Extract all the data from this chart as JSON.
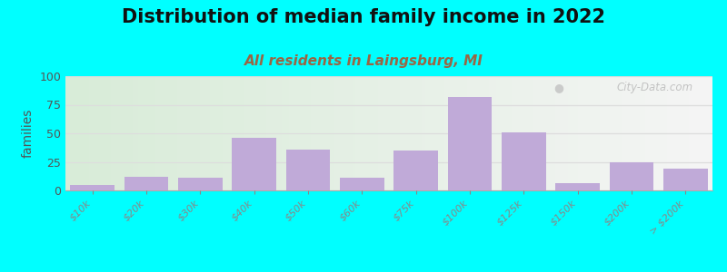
{
  "title": "Distribution of median family income in 2022",
  "subtitle": "All residents in Laingsburg, MI",
  "ylabel": "families",
  "categories": [
    "$10k",
    "$20k",
    "$30k",
    "$40k",
    "$50k",
    "$60k",
    "$75k",
    "$100k",
    "$125k",
    "$150k",
    "$200k",
    "> $200k"
  ],
  "values": [
    5,
    12,
    11,
    46,
    36,
    11,
    35,
    82,
    51,
    6,
    25,
    19
  ],
  "bar_color": "#c0aad8",
  "background_color": "#00ffff",
  "gradient_left": "#d8ecd8",
  "gradient_right": "#f5f5f5",
  "ylim": [
    0,
    100
  ],
  "yticks": [
    0,
    25,
    50,
    75,
    100
  ],
  "title_fontsize": 15,
  "subtitle_fontsize": 11,
  "ylabel_fontsize": 10,
  "watermark": "City-Data.com",
  "grid_color": "#dddddd",
  "subtitle_color": "#996644"
}
